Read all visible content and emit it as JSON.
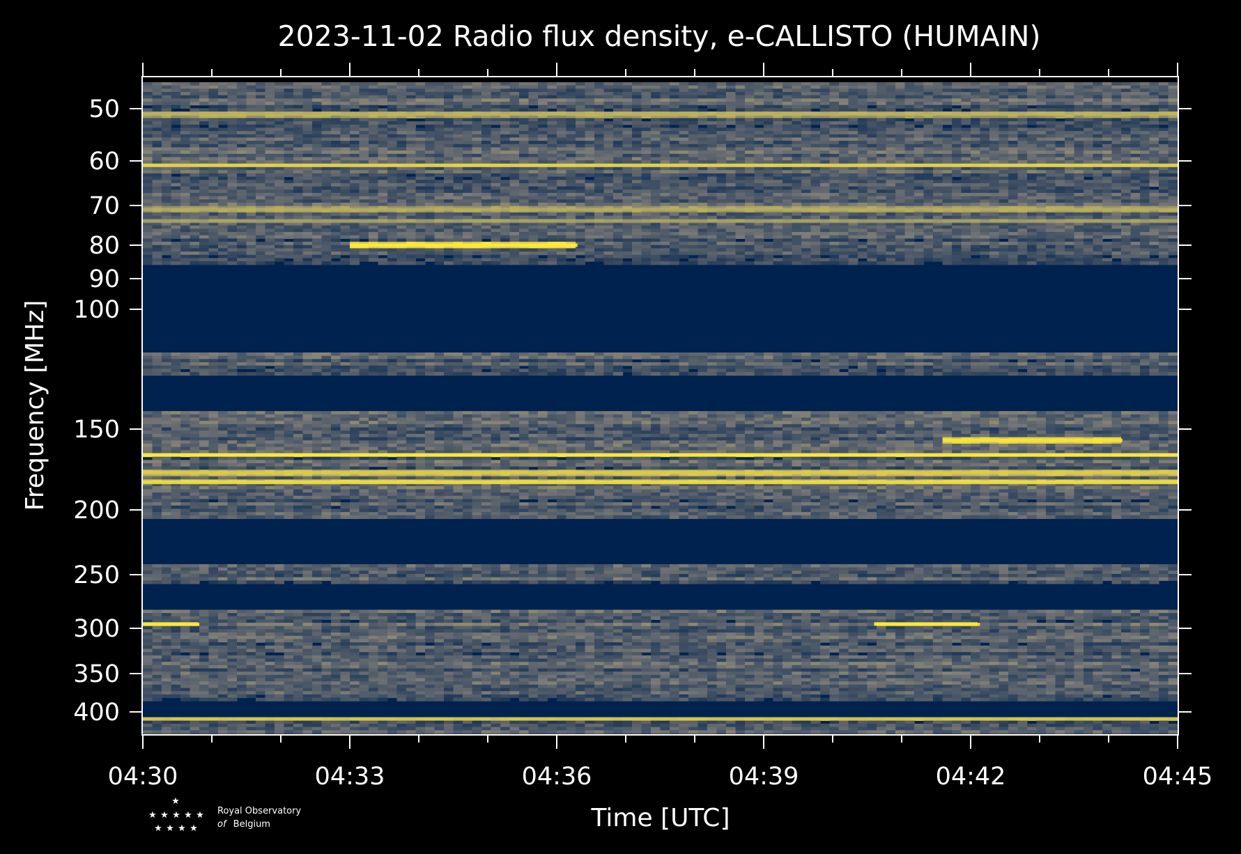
{
  "chart_data": {
    "type": "heatmap",
    "title": "2023-11-02 Radio flux density, e-CALLISTO (HUMAIN)",
    "xlabel": "Time [UTC]",
    "ylabel": "Frequency [MHz]",
    "x_ticks": [
      "04:30",
      "04:33",
      "04:36",
      "04:39",
      "04:42",
      "04:45"
    ],
    "x_tick_minutes": [
      0,
      3,
      6,
      9,
      12,
      15
    ],
    "x_range_minutes": [
      0,
      15
    ],
    "y_ticks": [
      50,
      60,
      70,
      80,
      90,
      100,
      150,
      200,
      250,
      300,
      350,
      400
    ],
    "y_range_mhz": [
      45,
      437
    ],
    "y_scale": "nonlinear (decreasing downward, wider spacing for higher frequencies)",
    "grid": false,
    "colors": {
      "background": "#000000",
      "low": "#00224e",
      "mid": "#7c7b78",
      "high": "#fee838"
    },
    "no_data_bands_mhz": [
      [
        86,
        118
      ],
      [
        128,
        143
      ],
      [
        207,
        243
      ],
      [
        258,
        283
      ],
      [
        384,
        408
      ]
    ],
    "emission_bands": [
      {
        "f_mhz": 51,
        "t_start": 0,
        "t_end": 15,
        "intensity": 0.55
      },
      {
        "f_mhz": 61,
        "t_start": 0,
        "t_end": 15,
        "intensity": 0.8
      },
      {
        "f_mhz": 71,
        "t_start": 0,
        "t_end": 15,
        "intensity": 0.5
      },
      {
        "f_mhz": 74,
        "t_start": 0,
        "t_end": 15,
        "intensity": 0.4
      },
      {
        "f_mhz": 80,
        "t_start": 3.0,
        "t_end": 6.3,
        "intensity": 1.0
      },
      {
        "f_mhz": 157,
        "t_start": 11.6,
        "t_end": 14.2,
        "intensity": 0.95
      },
      {
        "f_mhz": 166,
        "t_start": 0,
        "t_end": 15,
        "intensity": 1.0
      },
      {
        "f_mhz": 177,
        "t_start": 0,
        "t_end": 15,
        "intensity": 0.75
      },
      {
        "f_mhz": 183,
        "t_start": 0,
        "t_end": 15,
        "intensity": 0.9
      },
      {
        "f_mhz": 296,
        "t_start": 0,
        "t_end": 0.8,
        "intensity": 1.0
      },
      {
        "f_mhz": 296,
        "t_start": 10.6,
        "t_end": 12.1,
        "intensity": 1.0
      },
      {
        "f_mhz": 412,
        "t_start": 0,
        "t_end": 15,
        "intensity": 0.7
      }
    ]
  },
  "logo": {
    "line1": "Royal Observatory",
    "line2_italic": "of",
    "line2": "Belgium"
  }
}
